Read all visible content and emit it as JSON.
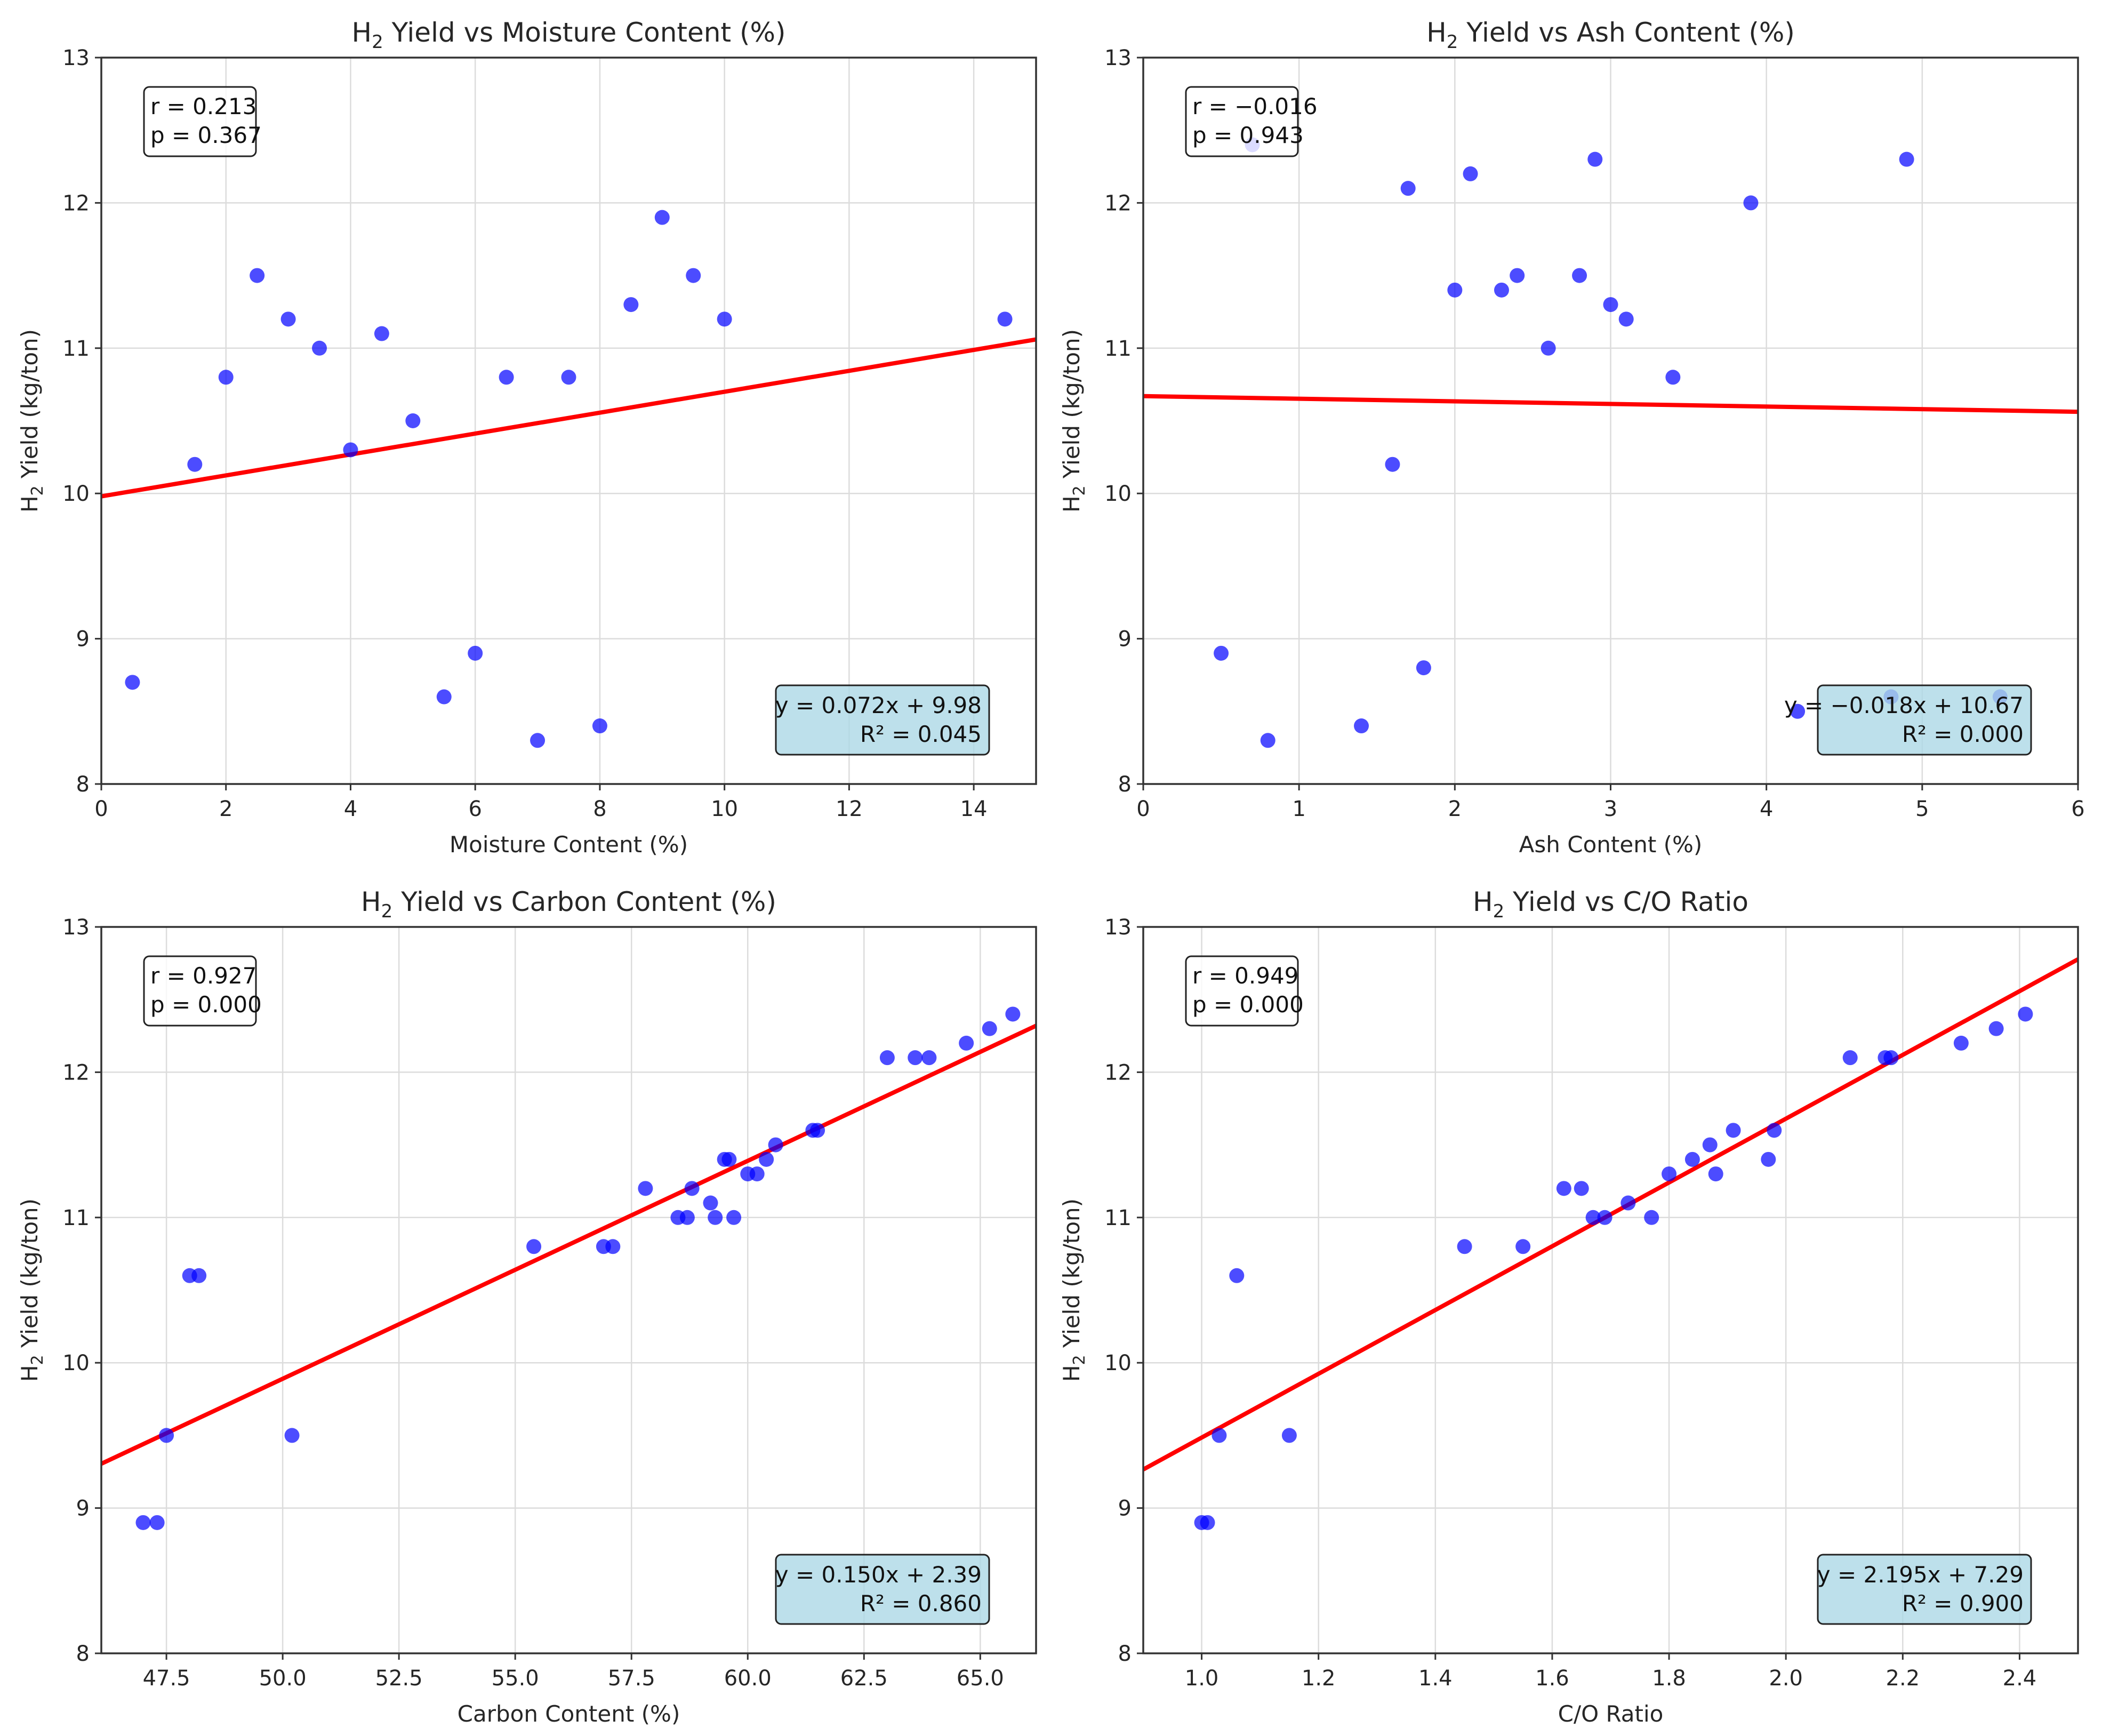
{
  "chart_data": [
    {
      "type": "scatter",
      "title_main": "H",
      "title_sub": "2",
      "title_rest": " Yield vs Moisture Content (%)",
      "xlabel": "Moisture Content (%)",
      "ylabel_main": "H",
      "ylabel_sub": "2",
      "ylabel_rest": " Yield (kg/ton)",
      "xlim": [
        0,
        15
      ],
      "ylim": [
        8,
        13
      ],
      "xticks": [
        0,
        2,
        4,
        6,
        8,
        10,
        12,
        14
      ],
      "xtick_labels": [
        "0",
        "2",
        "4",
        "6",
        "8",
        "10",
        "12",
        "14"
      ],
      "yticks": [
        8,
        9,
        10,
        11,
        12,
        13
      ],
      "ytick_labels": [
        "8",
        "9",
        "10",
        "11",
        "12",
        "13"
      ],
      "x": [
        0.5,
        1.5,
        2.0,
        2.5,
        3.0,
        3.5,
        4.0,
        4.5,
        5.0,
        5.5,
        6.0,
        6.5,
        7.0,
        7.5,
        8.0,
        8.5,
        9.0,
        9.5,
        10.0,
        14.5
      ],
      "y": [
        8.7,
        10.2,
        10.8,
        11.5,
        11.2,
        11.0,
        10.3,
        11.1,
        10.5,
        8.6,
        8.9,
        10.8,
        8.3,
        10.8,
        8.4,
        11.3,
        11.9,
        11.5,
        11.2,
        11.2
      ],
      "fit": {
        "slope": 0.072,
        "intercept": 9.98
      },
      "stats_text": [
        "r = 0.213",
        "p = 0.367"
      ],
      "eq_text": [
        "y = 0.072x + 9.98",
        "R² = 0.045"
      ],
      "point_color": "#0000ff",
      "line_color": "#ff0000",
      "eqbox_fill": "#add8e6"
    },
    {
      "type": "scatter",
      "title_main": "H",
      "title_sub": "2",
      "title_rest": " Yield vs Ash Content (%)",
      "xlabel": "Ash Content (%)",
      "ylabel_main": "H",
      "ylabel_sub": "2",
      "ylabel_rest": " Yield (kg/ton)",
      "xlim": [
        0,
        6
      ],
      "ylim": [
        8,
        13
      ],
      "xticks": [
        0,
        1,
        2,
        3,
        4,
        5,
        6
      ],
      "xtick_labels": [
        "0",
        "1",
        "2",
        "3",
        "4",
        "5",
        "6"
      ],
      "yticks": [
        8,
        9,
        10,
        11,
        12,
        13
      ],
      "ytick_labels": [
        "8",
        "9",
        "10",
        "11",
        "12",
        "13"
      ],
      "x": [
        0.5,
        0.7,
        0.8,
        1.4,
        1.6,
        1.7,
        1.8,
        2.0,
        2.1,
        2.3,
        2.4,
        2.6,
        2.8,
        2.9,
        3.0,
        3.1,
        3.4,
        3.9,
        4.2,
        4.8,
        4.9,
        5.5
      ],
      "y": [
        8.9,
        12.4,
        8.3,
        8.4,
        10.2,
        12.1,
        8.8,
        11.4,
        12.2,
        11.4,
        11.5,
        11.0,
        11.5,
        12.3,
        11.3,
        11.2,
        10.8,
        12.0,
        8.5,
        8.6,
        12.3,
        8.6
      ],
      "fit": {
        "slope": -0.018,
        "intercept": 10.67
      },
      "stats_text": [
        "r = −0.016",
        "p = 0.943"
      ],
      "eq_text": [
        "y = −0.018x + 10.67",
        "R² = 0.000"
      ],
      "point_color": "#0000ff",
      "line_color": "#ff0000",
      "eqbox_fill": "#add8e6"
    },
    {
      "type": "scatter",
      "title_main": "H",
      "title_sub": "2",
      "title_rest": " Yield vs Carbon Content (%)",
      "xlabel": "Carbon Content (%)",
      "ylabel_main": "H",
      "ylabel_sub": "2",
      "ylabel_rest": " Yield (kg/ton)",
      "xlim": [
        46.1,
        66.2
      ],
      "ylim": [
        8,
        13
      ],
      "xticks": [
        47.5,
        50.0,
        52.5,
        55.0,
        57.5,
        60.0,
        62.5,
        65.0
      ],
      "xtick_labels": [
        "47.5",
        "50.0",
        "52.5",
        "55.0",
        "57.5",
        "60.0",
        "62.5",
        "65.0"
      ],
      "yticks": [
        8,
        9,
        10,
        11,
        12,
        13
      ],
      "ytick_labels": [
        "8",
        "9",
        "10",
        "11",
        "12",
        "13"
      ],
      "x": [
        47.0,
        47.3,
        47.5,
        48.0,
        48.2,
        50.2,
        55.4,
        56.9,
        57.1,
        57.8,
        58.5,
        58.7,
        58.8,
        59.2,
        59.3,
        59.5,
        59.6,
        59.7,
        60.0,
        60.2,
        60.4,
        60.6,
        61.4,
        61.5,
        63.0,
        63.6,
        63.9,
        64.7,
        65.2,
        65.7
      ],
      "y": [
        8.9,
        8.9,
        9.5,
        10.6,
        10.6,
        9.5,
        10.8,
        10.8,
        10.8,
        11.2,
        11.0,
        11.0,
        11.2,
        11.1,
        11.0,
        11.4,
        11.4,
        11.0,
        11.3,
        11.3,
        11.4,
        11.5,
        11.6,
        11.6,
        12.1,
        12.1,
        12.1,
        12.2,
        12.3,
        12.4
      ],
      "fit": {
        "slope": 0.15,
        "intercept": 2.39
      },
      "stats_text": [
        "r = 0.927",
        "p = 0.000"
      ],
      "eq_text": [
        "y = 0.150x + 2.39",
        "R² = 0.860"
      ],
      "point_color": "#0000ff",
      "line_color": "#ff0000",
      "eqbox_fill": "#add8e6"
    },
    {
      "type": "scatter",
      "title_main": "H",
      "title_sub": "2",
      "title_rest": " Yield vs C/O Ratio",
      "xlabel": "C/O Ratio",
      "ylabel_main": "H",
      "ylabel_sub": "2",
      "ylabel_rest": " Yield (kg/ton)",
      "xlim": [
        0.9,
        2.5
      ],
      "ylim": [
        8,
        13
      ],
      "xticks": [
        1.0,
        1.2,
        1.4,
        1.6,
        1.8,
        2.0,
        2.2,
        2.4
      ],
      "xtick_labels": [
        "1.0",
        "1.2",
        "1.4",
        "1.6",
        "1.8",
        "2.0",
        "2.2",
        "2.4"
      ],
      "yticks": [
        8,
        9,
        10,
        11,
        12,
        13
      ],
      "ytick_labels": [
        "8",
        "9",
        "10",
        "11",
        "12",
        "13"
      ],
      "x": [
        1.0,
        1.01,
        1.03,
        1.06,
        1.15,
        1.45,
        1.55,
        1.62,
        1.65,
        1.67,
        1.69,
        1.73,
        1.77,
        1.8,
        1.84,
        1.87,
        1.88,
        1.91,
        1.97,
        1.98,
        2.11,
        2.17,
        2.18,
        2.3,
        2.36,
        2.41
      ],
      "y": [
        8.9,
        8.9,
        9.5,
        10.6,
        9.5,
        10.8,
        10.8,
        11.2,
        11.2,
        11.0,
        11.0,
        11.1,
        11.0,
        11.3,
        11.4,
        11.5,
        11.3,
        11.6,
        11.4,
        11.6,
        12.1,
        12.1,
        12.1,
        12.2,
        12.3,
        12.4
      ],
      "fit": {
        "slope": 2.195,
        "intercept": 7.29
      },
      "stats_text": [
        "r = 0.949",
        "p = 0.000"
      ],
      "eq_text": [
        "y = 2.195x + 7.29",
        "R² = 0.900"
      ],
      "point_color": "#0000ff",
      "line_color": "#ff0000",
      "eqbox_fill": "#add8e6"
    }
  ]
}
